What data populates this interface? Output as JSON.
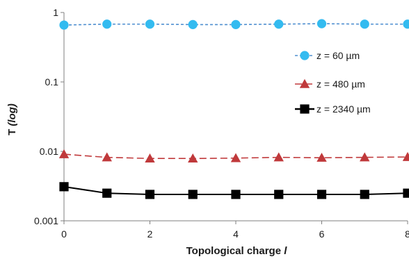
{
  "chart_data": {
    "type": "line",
    "title": "",
    "xlabel": "Topological charge",
    "xlabel_var": "l",
    "ylabel": "T",
    "ylabel_suffix": "(log)",
    "yscale": "log",
    "xlim": [
      0,
      8
    ],
    "ylim": [
      0.001,
      1
    ],
    "xticks": [
      "0",
      "2",
      "4",
      "6",
      "8"
    ],
    "yticks": [
      "0.001",
      "0.01",
      "0.1",
      "1"
    ],
    "grid": false,
    "legend_position": "right",
    "x": [
      0,
      1,
      2,
      3,
      4,
      5,
      6,
      7,
      8
    ],
    "series": [
      {
        "name": "z = 60 µm",
        "color": "#4f8fd0",
        "marker": "circle",
        "marker_color": "#33bbf0",
        "line_style": "dashed",
        "values": [
          0.66,
          0.68,
          0.68,
          0.67,
          0.67,
          0.68,
          0.69,
          0.68,
          0.68
        ]
      },
      {
        "name": "z = 480 µm",
        "color": "#c0393b",
        "marker": "triangle",
        "marker_color": "#c0393b",
        "line_style": "long-dashed",
        "values": [
          0.0091,
          0.0082,
          0.0079,
          0.0079,
          0.008,
          0.0082,
          0.0081,
          0.0082,
          0.0083
        ]
      },
      {
        "name": "z = 2340 µm",
        "color": "#000000",
        "marker": "square",
        "marker_color": "#000000",
        "line_style": "solid",
        "values": [
          0.0031,
          0.0025,
          0.0024,
          0.0024,
          0.0024,
          0.0024,
          0.0024,
          0.0024,
          0.0025
        ]
      }
    ]
  }
}
